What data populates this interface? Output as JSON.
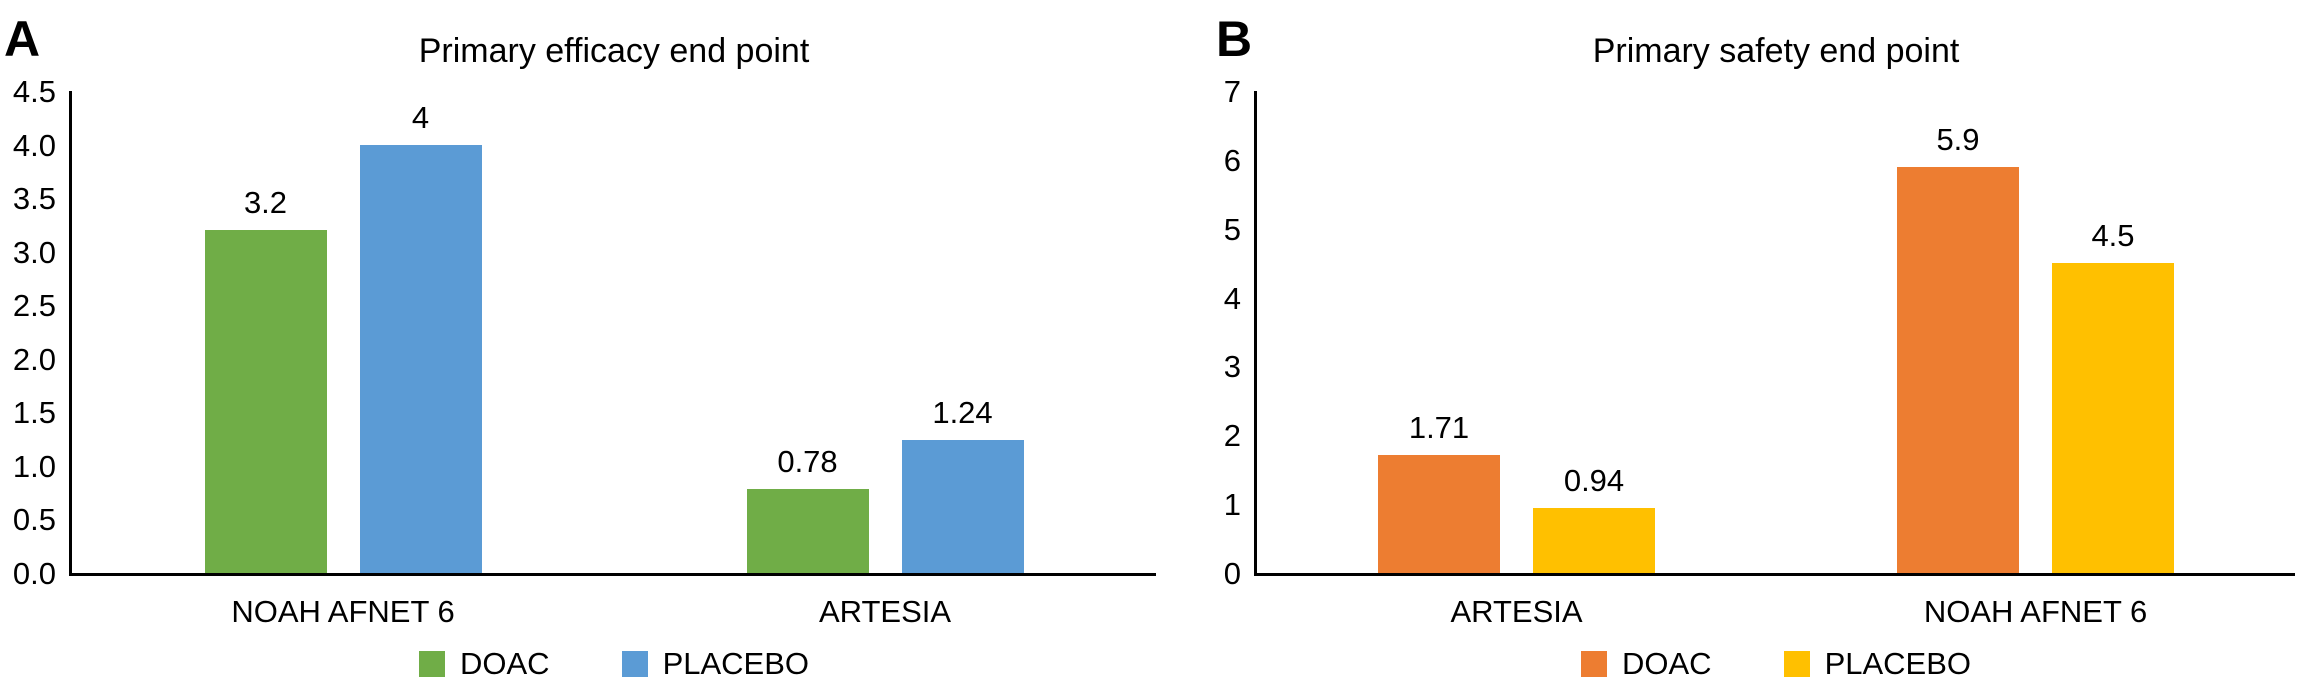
{
  "figure": {
    "background": "#ffffff",
    "text_color": "#000000",
    "axis_color": "#000000"
  },
  "chart_data": [
    {
      "type": "bar",
      "panel_letter": "A",
      "title": "Primary efficacy end point",
      "categories": [
        "NOAH AFNET 6",
        "ARTESIA"
      ],
      "series": [
        {
          "name": "DOAC",
          "color": "#70AD47",
          "values": [
            3.2,
            0.78
          ],
          "display": [
            "3.2",
            "0.78"
          ]
        },
        {
          "name": "PLACEBO",
          "color": "#5B9BD5",
          "values": [
            4,
            1.24
          ],
          "display": [
            "4",
            "1.24"
          ]
        }
      ],
      "ylim": [
        0,
        4.5
      ],
      "yticks": [
        {
          "label": "4.5",
          "value": 4.5
        },
        {
          "label": "4.0",
          "value": 4.0
        },
        {
          "label": "3.5",
          "value": 3.5
        },
        {
          "label": "3.0",
          "value": 3.0
        },
        {
          "label": "2.5",
          "value": 2.5
        },
        {
          "label": "2.0",
          "value": 2.0
        },
        {
          "label": "1.5",
          "value": 1.5
        },
        {
          "label": "1.0",
          "value": 1.0
        },
        {
          "label": "0.5",
          "value": 0.5
        },
        {
          "label": "0.0",
          "value": 0.0
        }
      ],
      "xlabel": "",
      "ylabel": "",
      "grid": false,
      "legend_position": "bottom"
    },
    {
      "type": "bar",
      "panel_letter": "B",
      "title": "Primary safety end point",
      "categories": [
        "ARTESIA",
        "NOAH AFNET 6"
      ],
      "series": [
        {
          "name": "DOAC",
          "color": "#ED7D31",
          "values": [
            1.71,
            5.9
          ],
          "display": [
            "1.71",
            "5.9"
          ]
        },
        {
          "name": "PLACEBO",
          "color": "#FFC000",
          "values": [
            0.94,
            4.5
          ],
          "display": [
            "0.94",
            "4.5"
          ]
        }
      ],
      "ylim": [
        0,
        7
      ],
      "yticks": [
        {
          "label": "7",
          "value": 7
        },
        {
          "label": "6",
          "value": 6
        },
        {
          "label": "5",
          "value": 5
        },
        {
          "label": "4",
          "value": 4
        },
        {
          "label": "3",
          "value": 3
        },
        {
          "label": "2",
          "value": 2
        },
        {
          "label": "1",
          "value": 1
        },
        {
          "label": "0",
          "value": 0
        }
      ],
      "xlabel": "",
      "ylabel": "",
      "grid": false,
      "legend_position": "bottom"
    }
  ]
}
